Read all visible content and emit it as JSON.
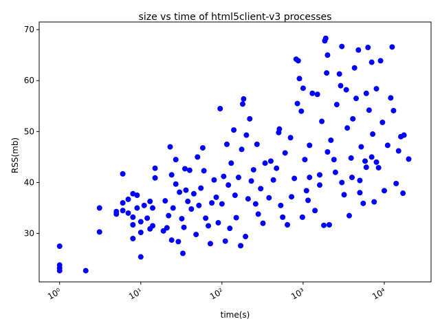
{
  "chart_data": {
    "type": "scatter",
    "title": "size vs time of html5client-v3 processes",
    "x_label": "time(s)",
    "y_label": "RSS(mb)",
    "color": "#0000ff",
    "x_log": true,
    "xlim": [
      0.56,
      37700
    ],
    "ylim": [
      20.5,
      71.5
    ],
    "xticks": [
      {
        "value": 1,
        "label": "10⁰"
      },
      {
        "value": 10,
        "label": "10¹"
      },
      {
        "value": 100,
        "label": "10²"
      },
      {
        "value": 1000,
        "label": "10³"
      },
      {
        "value": 10000,
        "label": "10⁴"
      }
    ],
    "yticks": [
      30,
      40,
      50,
      60,
      70
    ],
    "x": [
      1,
      1,
      1,
      1,
      2.1,
      3.1,
      3.1,
      5,
      5,
      6,
      6,
      6,
      7,
      7,
      8,
      8,
      8,
      8,
      9,
      9,
      10,
      10,
      10,
      11,
      12,
      13,
      13,
      14,
      14,
      15,
      15,
      19,
      20,
      21,
      22,
      23,
      24,
      24,
      25,
      27,
      27,
      29,
      30,
      32,
      33,
      34,
      35,
      36,
      38,
      40,
      42,
      45,
      48,
      50,
      52,
      55,
      58,
      60,
      63,
      68,
      72,
      75,
      80,
      85,
      90,
      95,
      100,
      105,
      110,
      115,
      120,
      125,
      130,
      140,
      145,
      150,
      160,
      170,
      175,
      180,
      185,
      195,
      200,
      210,
      220,
      230,
      245,
      260,
      270,
      280,
      300,
      320,
      340,
      380,
      400,
      430,
      470,
      500,
      510,
      530,
      560,
      600,
      640,
      700,
      720,
      780,
      820,
      850,
      870,
      900,
      950,
      980,
      1000,
      1050,
      1100,
      1150,
      1200,
      1300,
      1400,
      1500,
      1600,
      1700,
      1800,
      1850,
      1900,
      1950,
      2000,
      2100,
      2200,
      2400,
      2600,
      2800,
      2900,
      3000,
      3200,
      3400,
      3500,
      3700,
      3900,
      4100,
      4300,
      4500,
      4800,
      5000,
      5200,
      5500,
      5800,
      6000,
      6300,
      6500,
      7000,
      7200,
      7500,
      8000,
      8500,
      9000,
      9500,
      10000,
      11000,
      12000,
      12500,
      13000,
      14000,
      15000,
      16000,
      17000,
      17500,
      20000,
      1200,
      1600,
      2500,
      3000,
      4000,
      6000,
      8000,
      2000,
      5000,
      7000
    ],
    "values": [
      27.5,
      23.8,
      23.2,
      22.7,
      22.7,
      35,
      30.3,
      34.3,
      33.8,
      41.7,
      34.5,
      36,
      36.7,
      34,
      37.8,
      33.2,
      29,
      31.7,
      37.5,
      35,
      32.3,
      25.4,
      30.2,
      35.5,
      33,
      36.3,
      30.9,
      31.5,
      35,
      42.8,
      40.9,
      30.5,
      36.4,
      31.1,
      33.5,
      47,
      41.5,
      28.7,
      35,
      39.7,
      44.5,
      28.4,
      38.1,
      32.9,
      26.1,
      31.2,
      42.7,
      38.5,
      36.3,
      42.4,
      34.8,
      37.8,
      29.8,
      45,
      35.5,
      38.9,
      46.8,
      42.3,
      33,
      31.5,
      28,
      36,
      40.5,
      37.1,
      32.1,
      54.5,
      35.8,
      41.2,
      28.5,
      47.5,
      39.5,
      31,
      43.8,
      50.3,
      37.5,
      33.1,
      41,
      27.6,
      46.5,
      55.4,
      56.4,
      29.4,
      49.3,
      36.8,
      52.5,
      40.3,
      42.5,
      35.8,
      47.5,
      33.8,
      38.8,
      32,
      43.8,
      37,
      44.2,
      40.5,
      42.8,
      49.8,
      50.5,
      35.5,
      33.2,
      45.8,
      31.7,
      48.8,
      37.2,
      40.8,
      64.2,
      55.5,
      63.9,
      60.4,
      54,
      33.2,
      58.5,
      44.5,
      38.4,
      36.5,
      47.3,
      57.5,
      34.5,
      57.3,
      41.5,
      52,
      31.6,
      67.8,
      68.3,
      61.5,
      65,
      31.7,
      48.3,
      44.5,
      55.3,
      61.3,
      59,
      66.7,
      37.6,
      58.2,
      50.7,
      33.5,
      44.8,
      52.5,
      62.5,
      56.5,
      66,
      40.4,
      47,
      35.9,
      44.2,
      57.5,
      66.5,
      54.2,
      63.6,
      49.5,
      36.2,
      58.4,
      42.9,
      63.9,
      51.8,
      38.4,
      47.3,
      56.6,
      66.6,
      54.1,
      39.8,
      46.2,
      49,
      37.9,
      49.3,
      44.6,
      41,
      39.5,
      42,
      40,
      41,
      43,
      44,
      46,
      38,
      45
    ]
  }
}
